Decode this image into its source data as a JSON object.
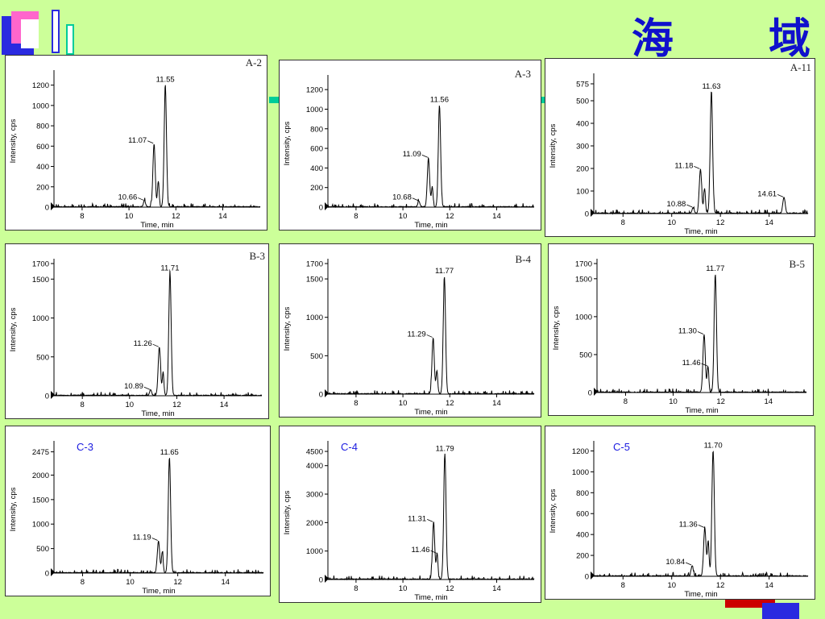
{
  "header": {
    "title": "海 域"
  },
  "colors": {
    "background": "#ccff99",
    "title": "#1010cc",
    "trace": "#000000"
  },
  "chart_data": [
    {
      "type": "line",
      "tag": "A-2",
      "xlabel": "Time, min",
      "ylabel": "Intensity, cps",
      "xlim": [
        6.8,
        15.6
      ],
      "xticks": [
        8,
        10,
        12,
        14
      ],
      "ylim": [
        0,
        1300
      ],
      "yticks": [
        0,
        200,
        400,
        600,
        800,
        1000,
        1200
      ],
      "peaks": [
        {
          "x": 10.66,
          "y": 60,
          "w": 0.06
        },
        {
          "x": 11.07,
          "y": 620,
          "w": 0.07
        },
        {
          "x": 11.25,
          "y": 250,
          "w": 0.05
        },
        {
          "x": 11.55,
          "y": 1200,
          "w": 0.07
        }
      ],
      "labels": [
        {
          "text": "11.55",
          "x": 11.55,
          "y": 1200
        },
        {
          "text": "11.07",
          "x": 11.07,
          "y": 620
        },
        {
          "text": "10.66",
          "x": 10.66,
          "y": 60
        }
      ]
    },
    {
      "type": "line",
      "tag": "A-3",
      "xlabel": "Time, min",
      "ylabel": "Intensity, cps",
      "xlim": [
        6.8,
        15.6
      ],
      "xticks": [
        8,
        10,
        12,
        14
      ],
      "ylim": [
        0,
        1300
      ],
      "yticks": [
        0,
        200,
        400,
        600,
        800,
        1000,
        1200
      ],
      "peaks": [
        {
          "x": 10.68,
          "y": 60,
          "w": 0.06
        },
        {
          "x": 11.09,
          "y": 500,
          "w": 0.07
        },
        {
          "x": 11.25,
          "y": 200,
          "w": 0.05
        },
        {
          "x": 11.56,
          "y": 1040,
          "w": 0.07
        }
      ],
      "labels": [
        {
          "text": "11.56",
          "x": 11.56,
          "y": 1040
        },
        {
          "text": "11.09",
          "x": 11.09,
          "y": 500
        },
        {
          "text": "10.68",
          "x": 10.68,
          "y": 60
        }
      ]
    },
    {
      "type": "line",
      "tag": "A-11",
      "xlabel": "Time, min",
      "ylabel": "Intensity, cps",
      "xlim": [
        6.8,
        15.6
      ],
      "xticks": [
        8,
        10,
        12,
        14
      ],
      "ylim": [
        0,
        600
      ],
      "yticks": [
        0,
        100,
        200,
        300,
        400,
        500,
        575
      ],
      "peaks": [
        {
          "x": 10.88,
          "y": 25,
          "w": 0.06
        },
        {
          "x": 11.18,
          "y": 195,
          "w": 0.07
        },
        {
          "x": 11.35,
          "y": 110,
          "w": 0.05
        },
        {
          "x": 11.63,
          "y": 540,
          "w": 0.07
        },
        {
          "x": 14.61,
          "y": 70,
          "w": 0.07
        }
      ],
      "labels": [
        {
          "text": "11.63",
          "x": 11.63,
          "y": 540
        },
        {
          "text": "11.18",
          "x": 11.18,
          "y": 195
        },
        {
          "text": "10.88",
          "x": 10.88,
          "y": 25
        },
        {
          "text": "14.61",
          "x": 14.61,
          "y": 70
        }
      ]
    },
    {
      "type": "line",
      "tag": "B-3",
      "xlabel": "Time, min",
      "ylabel": "Intensity, cps",
      "xlim": [
        6.8,
        15.6
      ],
      "xticks": [
        8,
        10,
        12,
        14
      ],
      "ylim": [
        0,
        1700
      ],
      "yticks": [
        0,
        500,
        1000,
        1500,
        1700
      ],
      "peaks": [
        {
          "x": 10.89,
          "y": 70,
          "w": 0.06
        },
        {
          "x": 11.26,
          "y": 620,
          "w": 0.07
        },
        {
          "x": 11.42,
          "y": 300,
          "w": 0.05
        },
        {
          "x": 11.71,
          "y": 1570,
          "w": 0.07
        }
      ],
      "labels": [
        {
          "text": "11.71",
          "x": 11.71,
          "y": 1570
        },
        {
          "text": "11.26",
          "x": 11.26,
          "y": 620
        },
        {
          "text": "10.89",
          "x": 10.89,
          "y": 70
        }
      ]
    },
    {
      "type": "line",
      "tag": "B-4",
      "xlabel": "Time, min",
      "ylabel": "Intensity, cps",
      "xlim": [
        6.8,
        15.6
      ],
      "xticks": [
        8,
        10,
        12,
        14
      ],
      "ylim": [
        0,
        1700
      ],
      "yticks": [
        0,
        500,
        1000,
        1500,
        1700
      ],
      "peaks": [
        {
          "x": 11.29,
          "y": 730,
          "w": 0.07
        },
        {
          "x": 11.45,
          "y": 300,
          "w": 0.05
        },
        {
          "x": 11.77,
          "y": 1530,
          "w": 0.07
        }
      ],
      "labels": [
        {
          "text": "11.77",
          "x": 11.77,
          "y": 1530
        },
        {
          "text": "11.29",
          "x": 11.29,
          "y": 730
        }
      ]
    },
    {
      "type": "line",
      "tag": "B-5",
      "xlabel": "Time, min",
      "ylabel": "Intensity, cps",
      "xlim": [
        6.8,
        15.6
      ],
      "xticks": [
        8,
        10,
        12,
        14
      ],
      "ylim": [
        0,
        1700
      ],
      "yticks": [
        0,
        500,
        1000,
        1500,
        1700
      ],
      "peaks": [
        {
          "x": 11.3,
          "y": 760,
          "w": 0.07
        },
        {
          "x": 11.46,
          "y": 340,
          "w": 0.05
        },
        {
          "x": 11.77,
          "y": 1560,
          "w": 0.07
        }
      ],
      "labels": [
        {
          "text": "11.77",
          "x": 11.77,
          "y": 1560
        },
        {
          "text": "11.30",
          "x": 11.3,
          "y": 760
        },
        {
          "text": "11.46",
          "x": 11.46,
          "y": 340
        }
      ]
    },
    {
      "type": "line",
      "tag": "C-3",
      "xlabel": "Time, min",
      "ylabel": "Intensity, cps",
      "xlim": [
        6.8,
        15.6
      ],
      "xticks": [
        8,
        10,
        12,
        14
      ],
      "ylim": [
        0,
        2600
      ],
      "yticks": [
        0,
        500,
        1000,
        1500,
        2000,
        2475
      ],
      "peaks": [
        {
          "x": 11.19,
          "y": 650,
          "w": 0.07
        },
        {
          "x": 11.35,
          "y": 420,
          "w": 0.05
        },
        {
          "x": 11.65,
          "y": 2350,
          "w": 0.07
        }
      ],
      "labels": [
        {
          "text": "11.65",
          "x": 11.65,
          "y": 2350
        },
        {
          "text": "11.19",
          "x": 11.19,
          "y": 650
        }
      ]
    },
    {
      "type": "line",
      "tag": "C-4",
      "xlabel": "Time, min",
      "ylabel": "Intensity, cps",
      "xlim": [
        6.8,
        15.6
      ],
      "xticks": [
        8,
        10,
        12,
        14
      ],
      "ylim": [
        0,
        4700
      ],
      "yticks": [
        0,
        1000,
        2000,
        3000,
        4000,
        4500
      ],
      "peaks": [
        {
          "x": 11.31,
          "y": 2000,
          "w": 0.07
        },
        {
          "x": 11.46,
          "y": 900,
          "w": 0.05
        },
        {
          "x": 11.79,
          "y": 4400,
          "w": 0.07
        }
      ],
      "labels": [
        {
          "text": "11.79",
          "x": 11.79,
          "y": 4400
        },
        {
          "text": "11.31",
          "x": 11.31,
          "y": 2000
        },
        {
          "text": "11.46",
          "x": 11.46,
          "y": 900
        }
      ]
    },
    {
      "type": "line",
      "tag": "C-5",
      "xlabel": "Time, min",
      "ylabel": "Intensity, cps",
      "xlim": [
        6.8,
        15.6
      ],
      "xticks": [
        8,
        10,
        12,
        14
      ],
      "ylim": [
        0,
        1250
      ],
      "yticks": [
        0,
        200,
        400,
        600,
        800,
        1000,
        1200
      ],
      "peaks": [
        {
          "x": 10.84,
          "y": 100,
          "w": 0.06
        },
        {
          "x": 11.36,
          "y": 460,
          "w": 0.07
        },
        {
          "x": 11.5,
          "y": 330,
          "w": 0.05
        },
        {
          "x": 11.7,
          "y": 1200,
          "w": 0.07
        }
      ],
      "labels": [
        {
          "text": "11.70",
          "x": 11.7,
          "y": 1200
        },
        {
          "text": "11.36",
          "x": 11.36,
          "y": 460
        },
        {
          "text": "10.84",
          "x": 10.84,
          "y": 100
        }
      ]
    }
  ]
}
